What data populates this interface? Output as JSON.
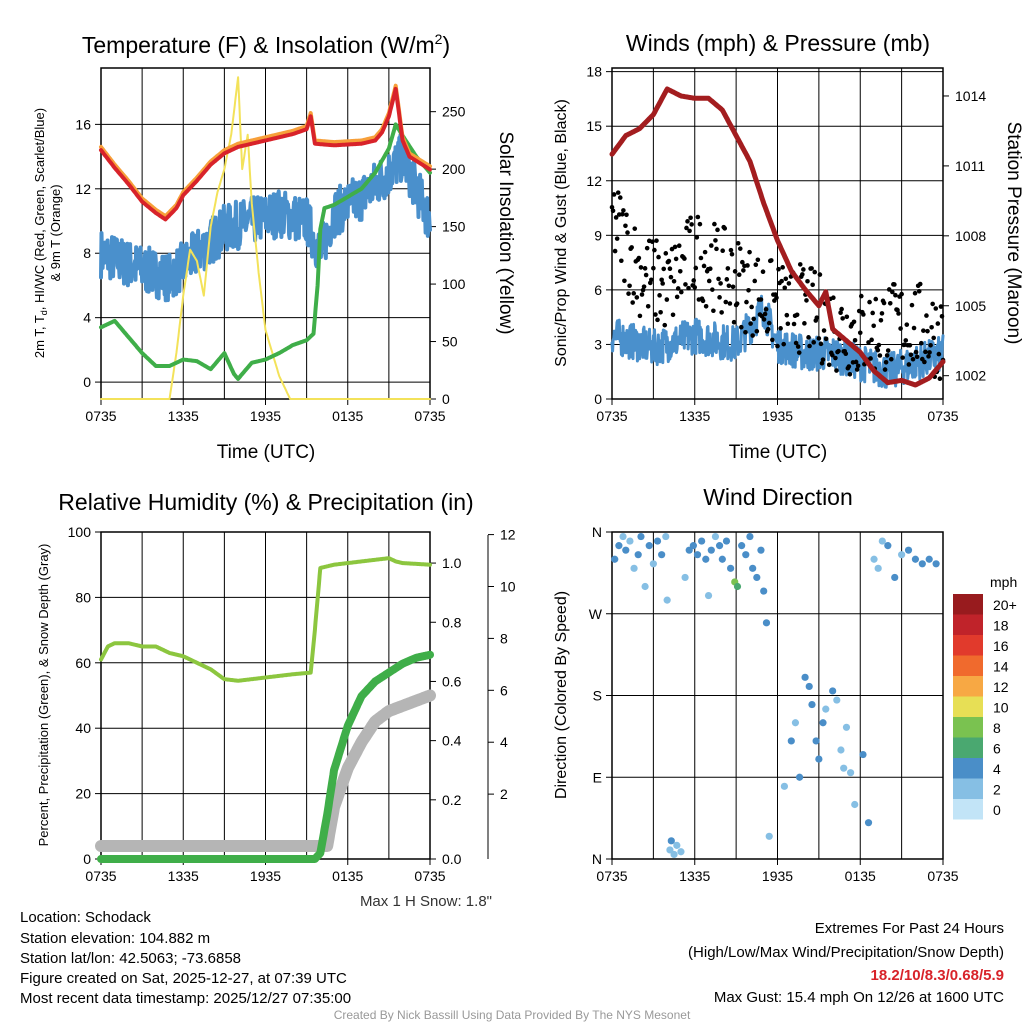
{
  "colors": {
    "temp": "#d8232a",
    "temp9m": "#f7a03a",
    "dew": "#3fae49",
    "wc": "#4a90cc",
    "solar": "#f3e25a",
    "wind": "#4a90cc",
    "gust": "#000000",
    "pressure": "#a31d1f",
    "rh": "#8cc63f",
    "precip": "#3fae49",
    "snow": "#b5b5b5"
  },
  "x_tick_labels": [
    "0735",
    "1335",
    "1935",
    "0135",
    "0735"
  ],
  "chart_data": [
    {
      "type": "line",
      "title": "Temperature (F) & Insolation (W/m",
      "title_sup": "2",
      "title_end": ")",
      "xlabel": "Time (UTC)",
      "ylabel": "2m T, T",
      "ylabel_sub": "d",
      "ylabel_rest": ", HI/WC (Red, Green, Scarlet/Blue)",
      "ylabel2": "& 9m T (Orange)",
      "y2label": "Solar Insolation (Yellow)",
      "xlim": [
        0,
        24
      ],
      "ylim": [
        -1.05,
        19.5
      ],
      "y2lim": [
        0,
        288
      ],
      "yticks": [
        0,
        4,
        8,
        12,
        16
      ],
      "y2ticks": [
        0,
        50,
        100,
        150,
        200,
        250
      ],
      "series": [
        {
          "name": "2m T",
          "color_key": "temp",
          "x": [
            0,
            1,
            2,
            3,
            4,
            4.7,
            5.5,
            6,
            7,
            8,
            9,
            10,
            11,
            12,
            13,
            14,
            15,
            15.3,
            15.6,
            17,
            19,
            20,
            20.5,
            21,
            21.5,
            22,
            22.5,
            24
          ],
          "y": [
            14.4,
            13.3,
            12.3,
            11.2,
            10.5,
            10.1,
            10.8,
            11.6,
            12.5,
            13.5,
            14.2,
            14.6,
            14.8,
            15,
            15.2,
            15.4,
            15.7,
            16.5,
            14.8,
            14.7,
            14.8,
            15,
            15.5,
            16.5,
            18.2,
            15,
            14,
            13.2
          ]
        },
        {
          "name": "9m T",
          "color_key": "temp9m",
          "offset": 0.2
        },
        {
          "name": "Td",
          "color_key": "dew",
          "x": [
            0,
            1,
            2,
            3,
            4,
            5,
            6,
            7,
            8,
            9,
            9.7,
            10,
            11,
            12,
            13,
            14,
            15,
            15.5,
            15.8,
            16,
            16.3,
            17,
            18,
            19,
            20,
            21,
            21.5,
            22,
            23,
            24
          ],
          "y": [
            3.4,
            3.8,
            2.8,
            1.8,
            1,
            1,
            1.4,
            1.3,
            0.8,
            1.8,
            0.5,
            0.2,
            1.2,
            1.4,
            1.8,
            2.3,
            2.6,
            3,
            6,
            9.5,
            10.8,
            11,
            11.5,
            12,
            13,
            14.5,
            16,
            15.3,
            14,
            13
          ]
        },
        {
          "name": "HI/WC",
          "color_key": "wc",
          "noise": 1.5,
          "x": [
            0,
            3,
            5,
            7,
            9,
            11,
            13,
            15,
            16,
            17,
            19,
            21,
            22,
            24
          ],
          "y": [
            8,
            7,
            6.5,
            8,
            9.5,
            10,
            10.5,
            10,
            8,
            10.5,
            11.5,
            13,
            14,
            10
          ]
        },
        {
          "name": "Solar",
          "color_key": "solar",
          "axis": "y2",
          "x": [
            0,
            5,
            5.5,
            6,
            6.5,
            7,
            7.5,
            8,
            8.5,
            9,
            9.5,
            10,
            10.3,
            10.7,
            11,
            11.5,
            12,
            12.5,
            13,
            13.8,
            24
          ],
          "y": [
            0,
            0,
            40,
            90,
            130,
            120,
            90,
            150,
            180,
            200,
            230,
            280,
            200,
            230,
            170,
            110,
            60,
            40,
            20,
            0,
            0
          ]
        }
      ]
    },
    {
      "type": "line",
      "title": "Winds (mph) & Pressure (mb)",
      "xlabel": "Time (UTC)",
      "ylabel": "Sonic/Prop Wind & Gust (Blue, Black)",
      "y2label": "Station Pressure (Maroon)",
      "xlim": [
        0,
        24
      ],
      "ylim": [
        0,
        18.2
      ],
      "y2lim": [
        1001,
        1015.2
      ],
      "yticks": [
        0,
        3,
        6,
        9,
        12,
        15,
        18
      ],
      "y2ticks": [
        1002,
        1005,
        1008,
        1011,
        1014
      ],
      "series": [
        {
          "name": "Wind",
          "color_key": "wind",
          "noise": 1,
          "x": [
            0,
            3,
            6,
            9,
            10,
            11,
            12,
            14,
            16,
            18,
            20,
            24
          ],
          "y": [
            3.5,
            2.8,
            3.5,
            3,
            4,
            5,
            3,
            2.5,
            2.5,
            2,
            1.5,
            2.5
          ]
        },
        {
          "name": "Gust",
          "color_key": "gust",
          "kind": "dots",
          "noise": 2.5,
          "x": [
            0,
            2,
            4,
            6,
            8,
            10,
            12,
            14,
            16,
            18,
            20,
            22,
            24
          ],
          "y": [
            10,
            7,
            6,
            8,
            7,
            6,
            5,
            5,
            4,
            3.5,
            4,
            4,
            3.5
          ]
        },
        {
          "name": "Pressure",
          "color_key": "pressure",
          "axis": "y2",
          "x": [
            0,
            1,
            2,
            3,
            4,
            5,
            6,
            7,
            8,
            9,
            10,
            11,
            12,
            13,
            14,
            15,
            15.5,
            16,
            17,
            18,
            19,
            20,
            21,
            22,
            23,
            24
          ],
          "y": [
            1011.5,
            1012.3,
            1012.6,
            1013.2,
            1014.3,
            1014,
            1013.9,
            1013.9,
            1013.4,
            1012.3,
            1011.2,
            1009.4,
            1007.8,
            1006.5,
            1005.7,
            1005,
            1005.6,
            1004,
            1003.5,
            1003,
            1002.2,
            1001.7,
            1001.8,
            1001.6,
            1001.9,
            1002.6
          ]
        }
      ]
    },
    {
      "type": "line",
      "title": "Relative Humidity (%) & Precipitation (in)",
      "ylabel": "Percent, Precipitation (Green), & Snow Depth (Gray)",
      "xlim": [
        0,
        24
      ],
      "ylim": [
        0,
        100
      ],
      "y2lim": [
        0,
        1.105
      ],
      "y3lim": [
        -0.5,
        12.1
      ],
      "yticks": [
        0,
        20,
        40,
        60,
        80,
        100
      ],
      "y2ticks": [
        "0.0",
        "0.2",
        "0.4",
        "0.6",
        "0.8",
        "1.0"
      ],
      "y3ticks": [
        2,
        4,
        6,
        8,
        10,
        12
      ],
      "note": "Max 1 H Snow: 1.8\"",
      "series": [
        {
          "name": "RH",
          "color_key": "rh",
          "x": [
            0,
            0.5,
            1,
            2,
            3,
            4,
            5,
            6,
            7,
            8,
            9,
            10,
            11,
            12,
            13,
            14,
            15.3,
            15.6,
            16,
            17,
            19,
            20,
            21,
            21.5,
            22,
            24
          ],
          "y": [
            61,
            65,
            66,
            66,
            65,
            65,
            63,
            62,
            60,
            58,
            55,
            54.5,
            55,
            55.5,
            56,
            56.5,
            57,
            70,
            89,
            90,
            91,
            91.5,
            92,
            91,
            90.5,
            90
          ]
        },
        {
          "name": "Precip",
          "color_key": "precip",
          "axis": "y2",
          "x": [
            0,
            15.6,
            16,
            16.5,
            17,
            18,
            19,
            20,
            21,
            22,
            23,
            24
          ],
          "y": [
            0,
            0,
            0.02,
            0.15,
            0.3,
            0.45,
            0.55,
            0.6,
            0.63,
            0.66,
            0.68,
            0.69
          ]
        },
        {
          "name": "Snow depth",
          "color_key": "snow",
          "axis": "y3",
          "x": [
            0,
            16.5,
            17,
            18,
            19,
            20,
            21,
            22,
            24
          ],
          "y": [
            0,
            0,
            1.5,
            3,
            4,
            4.8,
            5.2,
            5.4,
            5.8
          ]
        }
      ]
    },
    {
      "type": "scatter",
      "title": "Wind Direction",
      "ylabel": "Direction (Colored By Speed)",
      "xlim": [
        0,
        24
      ],
      "ylim": [
        0,
        360
      ],
      "ytick_labels": [
        "N",
        "E",
        "S",
        "W",
        "N"
      ],
      "legend": {
        "title": "mph",
        "labels": [
          "20+",
          "18",
          "16",
          "14",
          "12",
          "10",
          "8",
          "6",
          "4",
          "2",
          "0"
        ],
        "colors": [
          "#981b1e",
          "#c0232a",
          "#e13a2c",
          "#f06a2d",
          "#f7a844",
          "#e7df55",
          "#7ac250",
          "#4aa870",
          "#4a8ec8",
          "#86bfe4",
          "#c2e4f7"
        ]
      },
      "points": [
        [
          0.2,
          330,
          3
        ],
        [
          0.5,
          345,
          3
        ],
        [
          0.8,
          355,
          2
        ],
        [
          1,
          340,
          4
        ],
        [
          1.3,
          350,
          1
        ],
        [
          1.6,
          320,
          2
        ],
        [
          1.9,
          335,
          3
        ],
        [
          2.1,
          355,
          4
        ],
        [
          2.4,
          300,
          2
        ],
        [
          2.7,
          345,
          3
        ],
        [
          3,
          325,
          2
        ],
        [
          3.3,
          350,
          3
        ],
        [
          3.6,
          335,
          4
        ],
        [
          3.9,
          355,
          2
        ],
        [
          4,
          285,
          2
        ],
        [
          4.2,
          10,
          2
        ],
        [
          4.3,
          20,
          3
        ],
        [
          4.5,
          5,
          2
        ],
        [
          4.7,
          15,
          1
        ],
        [
          5,
          8,
          2
        ],
        [
          5.3,
          310,
          1
        ],
        [
          5.6,
          340,
          4
        ],
        [
          5.9,
          345,
          4
        ],
        [
          6.2,
          335,
          4
        ],
        [
          6.5,
          350,
          4
        ],
        [
          6.8,
          330,
          4
        ],
        [
          7,
          290,
          1
        ],
        [
          7.2,
          340,
          3
        ],
        [
          7.5,
          355,
          2
        ],
        [
          7.8,
          345,
          3
        ],
        [
          8,
          330,
          4
        ],
        [
          8.3,
          350,
          4
        ],
        [
          8.6,
          320,
          3
        ],
        [
          8.9,
          305,
          7
        ],
        [
          9.1,
          300,
          6
        ],
        [
          9.4,
          345,
          3
        ],
        [
          9.7,
          335,
          4
        ],
        [
          10,
          355,
          3
        ],
        [
          10.2,
          320,
          4
        ],
        [
          10.5,
          310,
          4
        ],
        [
          10.8,
          340,
          3
        ],
        [
          11,
          295,
          3
        ],
        [
          11.2,
          260,
          4
        ],
        [
          11.4,
          25,
          2
        ],
        [
          12.5,
          80,
          1
        ],
        [
          13,
          130,
          3
        ],
        [
          13.3,
          150,
          2
        ],
        [
          13.6,
          90,
          4
        ],
        [
          14,
          200,
          4
        ],
        [
          14.3,
          190,
          4
        ],
        [
          14.5,
          170,
          4
        ],
        [
          14.8,
          130,
          3
        ],
        [
          15,
          110,
          4
        ],
        [
          15.3,
          150,
          3
        ],
        [
          15.5,
          165,
          2
        ],
        [
          16,
          185,
          3
        ],
        [
          16.3,
          175,
          2
        ],
        [
          16.6,
          120,
          1
        ],
        [
          16.8,
          100,
          2
        ],
        [
          17,
          145,
          1
        ],
        [
          17.3,
          95,
          2
        ],
        [
          17.6,
          60,
          1
        ],
        [
          18.2,
          115,
          4
        ],
        [
          18.6,
          40,
          4
        ],
        [
          19,
          330,
          1
        ],
        [
          19.3,
          320,
          1
        ],
        [
          19.6,
          350,
          1
        ],
        [
          20,
          345,
          3
        ],
        [
          20.5,
          310,
          3
        ],
        [
          21,
          335,
          2
        ],
        [
          21.5,
          340,
          4
        ],
        [
          22,
          330,
          3
        ],
        [
          22.5,
          325,
          3
        ],
        [
          23,
          330,
          4
        ],
        [
          23.5,
          325,
          3
        ]
      ]
    }
  ],
  "footer": {
    "location": "Location: Schodack",
    "elevation": "Station elevation: 104.882 m",
    "latlon": "Station lat/lon: 42.5063; -73.6858",
    "created": "Figure created on Sat, 2025-12-27, at 07:39 UTC",
    "recent": "Most recent data timestamp: 2025/12/27 07:35:00",
    "extremes_title": "Extremes For Past 24 Hours",
    "extremes_sub": "(High/Low/Max Wind/Precipitation/Snow Depth)",
    "extremes_values": "18.2/10/8.3/0.68/5.9",
    "max_gust": "Max Gust: 15.4 mph On 12/26 at 1600 UTC",
    "credit": "Created By Nick Bassill Using Data Provided By The NYS Mesonet"
  }
}
